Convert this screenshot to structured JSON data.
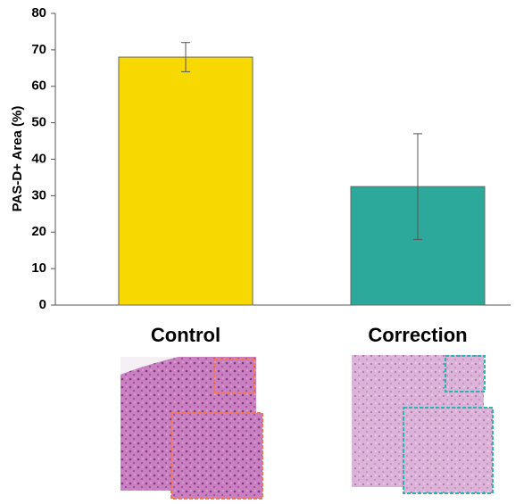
{
  "chart_data": {
    "type": "bar",
    "ylabel": "PAS-D+ Area (%)",
    "categories": [
      "Control",
      "Correction"
    ],
    "values": [
      68,
      32.5
    ],
    "errors": [
      4,
      14.5
    ],
    "colors": [
      "#f7d800",
      "#2ca99a"
    ],
    "ylim": [
      0,
      80
    ],
    "yticks": [
      0,
      10,
      20,
      30,
      40,
      50,
      60,
      70,
      80
    ]
  }
}
